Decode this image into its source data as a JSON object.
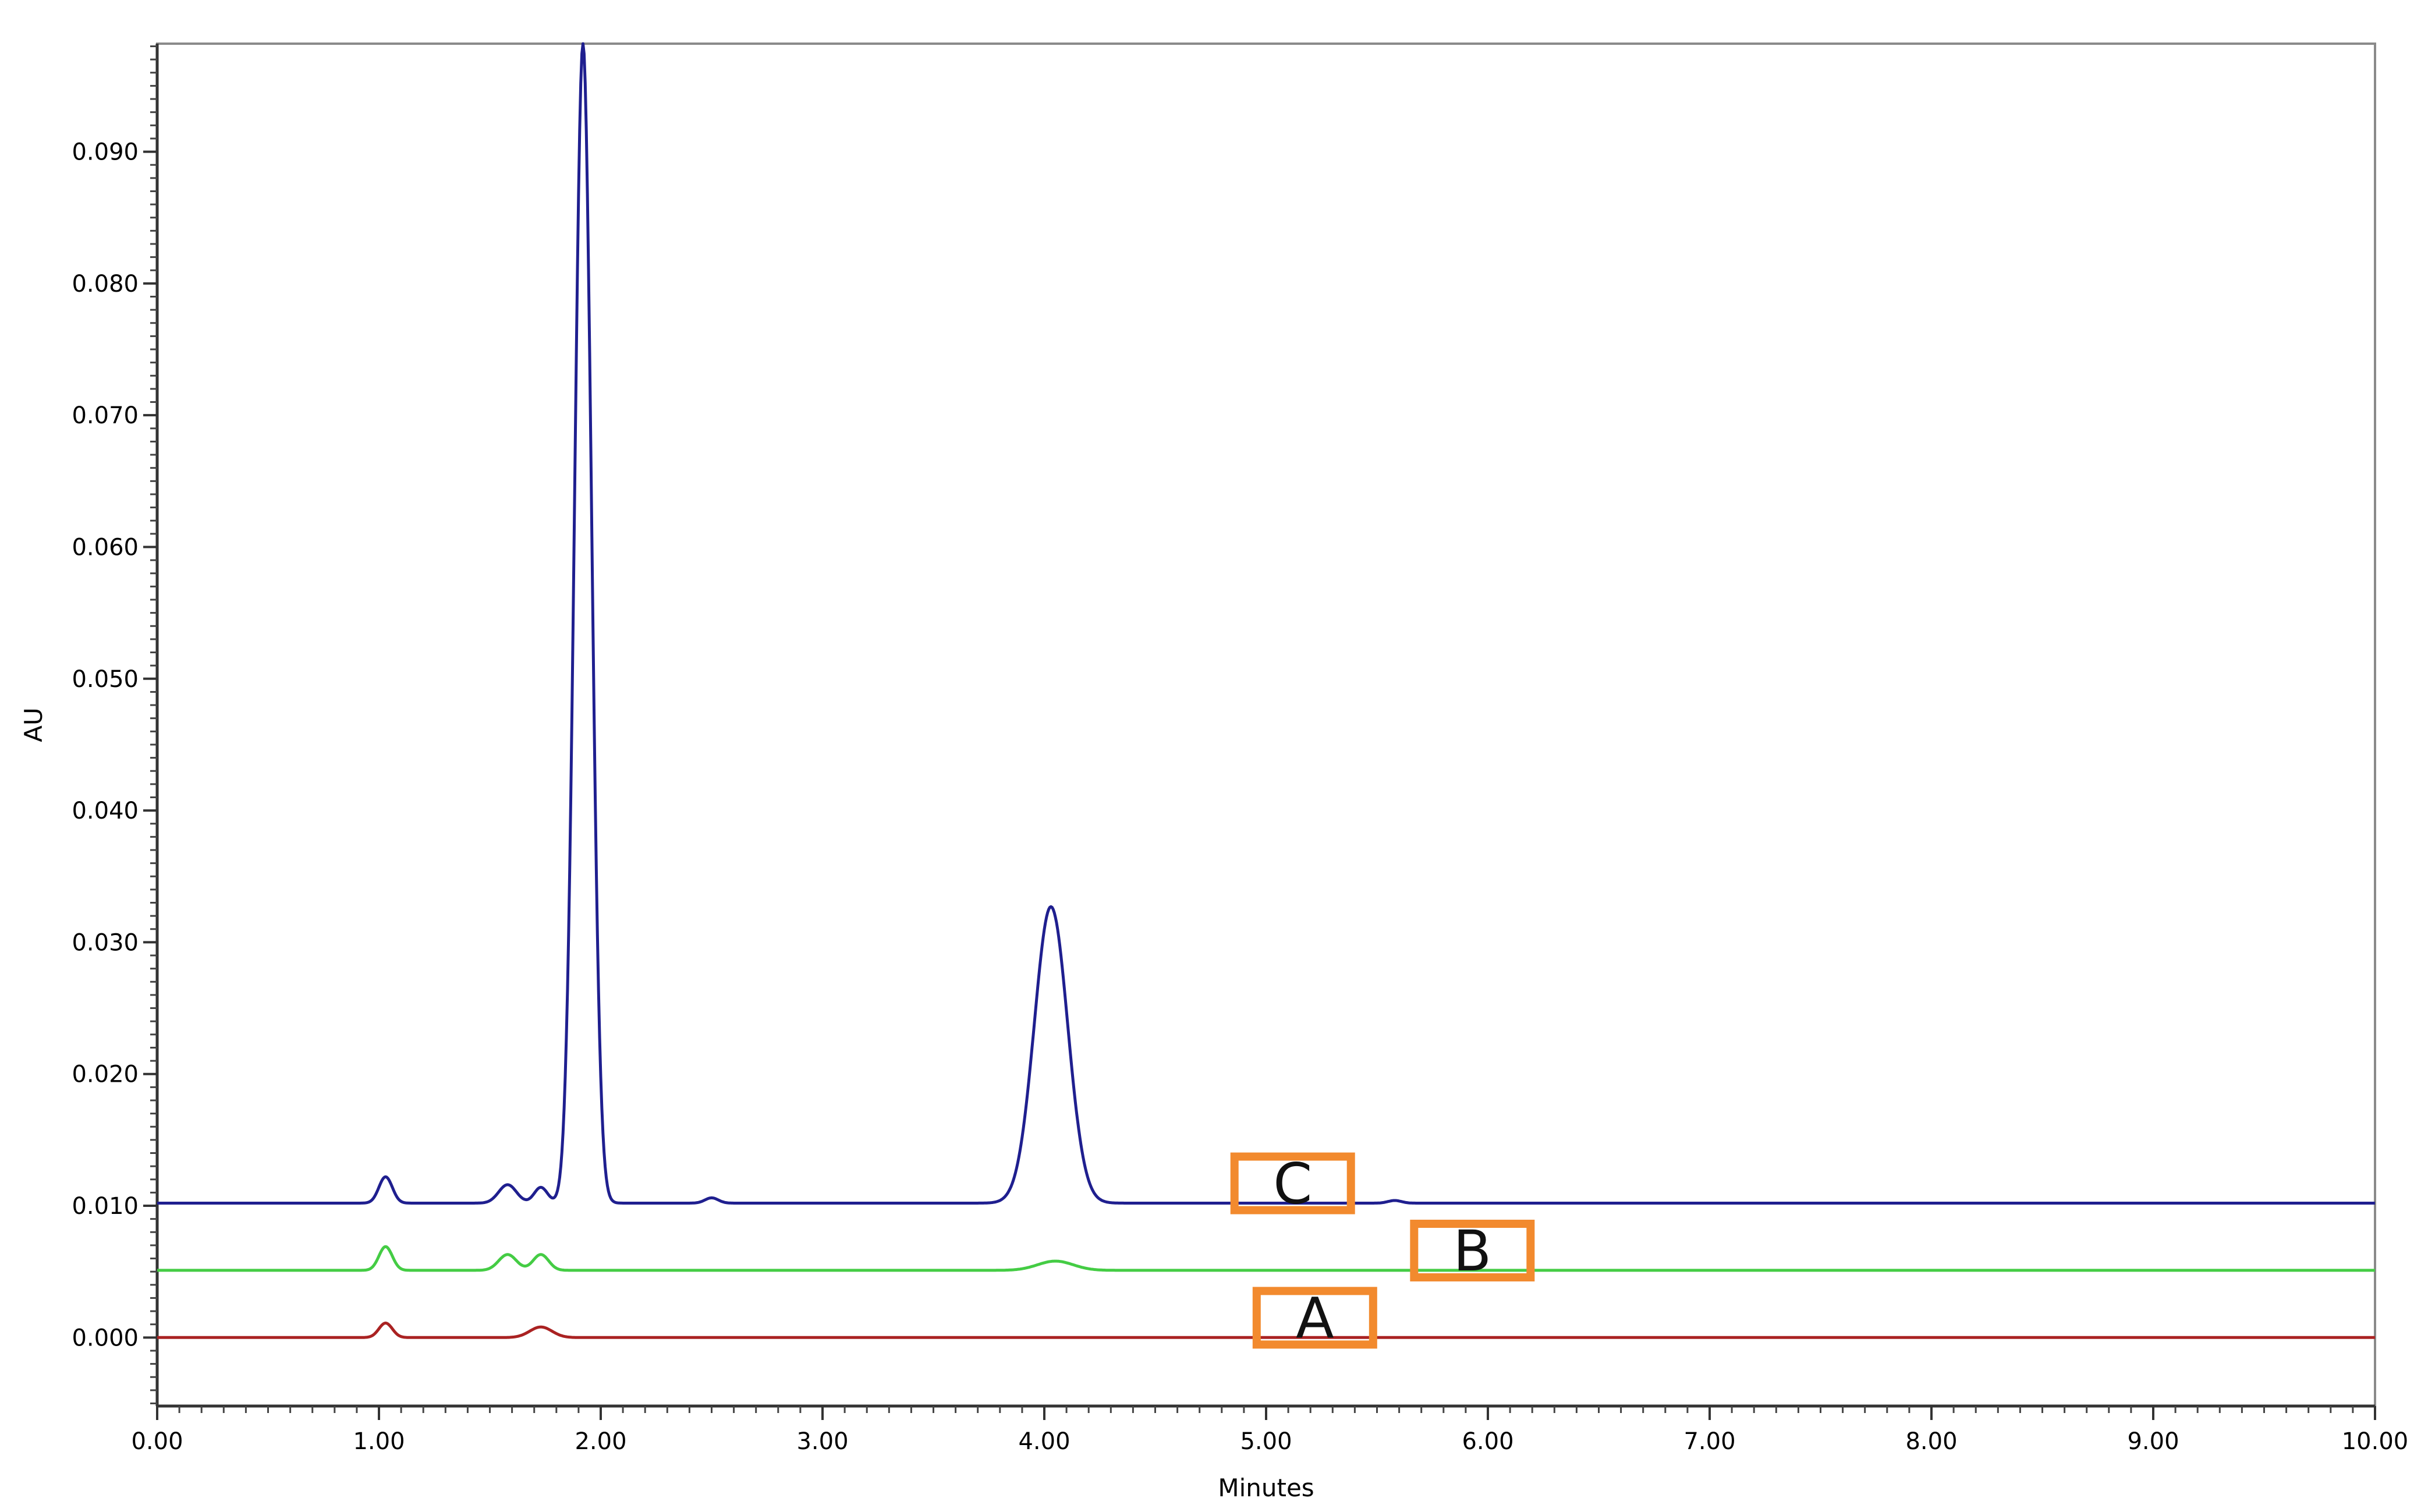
{
  "chart_data": {
    "type": "line",
    "xlabel": "Minutes",
    "ylabel": "AU",
    "xlim": [
      0,
      10
    ],
    "ylim": [
      -0.0052,
      0.0982
    ],
    "x_ticks": [
      "0.00",
      "1.00",
      "2.00",
      "3.00",
      "4.00",
      "5.00",
      "6.00",
      "7.00",
      "8.00",
      "9.00",
      "10.00"
    ],
    "y_ticks": [
      "0.000",
      "0.010",
      "0.020",
      "0.030",
      "0.040",
      "0.050",
      "0.060",
      "0.070",
      "0.080",
      "0.090"
    ],
    "grid": false,
    "series": [
      {
        "name": "C",
        "color": "#1f1f8f",
        "baseline": 0.0102,
        "peaks": [
          {
            "x": 1.03,
            "h": 0.002,
            "w": 0.03
          },
          {
            "x": 1.58,
            "h": 0.0014,
            "w": 0.04
          },
          {
            "x": 1.73,
            "h": 0.0012,
            "w": 0.03
          },
          {
            "x": 1.92,
            "h": 0.088,
            "w": 0.038
          },
          {
            "x": 2.5,
            "h": 0.0004,
            "w": 0.03
          },
          {
            "x": 4.03,
            "h": 0.0225,
            "w": 0.075
          },
          {
            "x": 5.58,
            "h": 0.0002,
            "w": 0.03
          }
        ]
      },
      {
        "name": "B",
        "color": "#44cc44",
        "baseline": 0.0051,
        "peaks": [
          {
            "x": 1.03,
            "h": 0.0018,
            "w": 0.03
          },
          {
            "x": 1.58,
            "h": 0.0012,
            "w": 0.04
          },
          {
            "x": 1.73,
            "h": 0.0012,
            "w": 0.035
          },
          {
            "x": 4.05,
            "h": 0.0007,
            "w": 0.08
          }
        ]
      },
      {
        "name": "A",
        "color": "#aa2222",
        "baseline": 0.0,
        "peaks": [
          {
            "x": 1.03,
            "h": 0.0011,
            "w": 0.03
          },
          {
            "x": 1.73,
            "h": 0.0008,
            "w": 0.05
          }
        ]
      }
    ],
    "annotations": [
      {
        "text": "C",
        "x": 5.12,
        "y": 0.0117
      },
      {
        "text": "B",
        "x": 5.93,
        "y": 0.0066
      },
      {
        "text": "A",
        "x": 5.22,
        "y": 0.0015
      }
    ],
    "annotation_box_color": "#f28a2e"
  }
}
